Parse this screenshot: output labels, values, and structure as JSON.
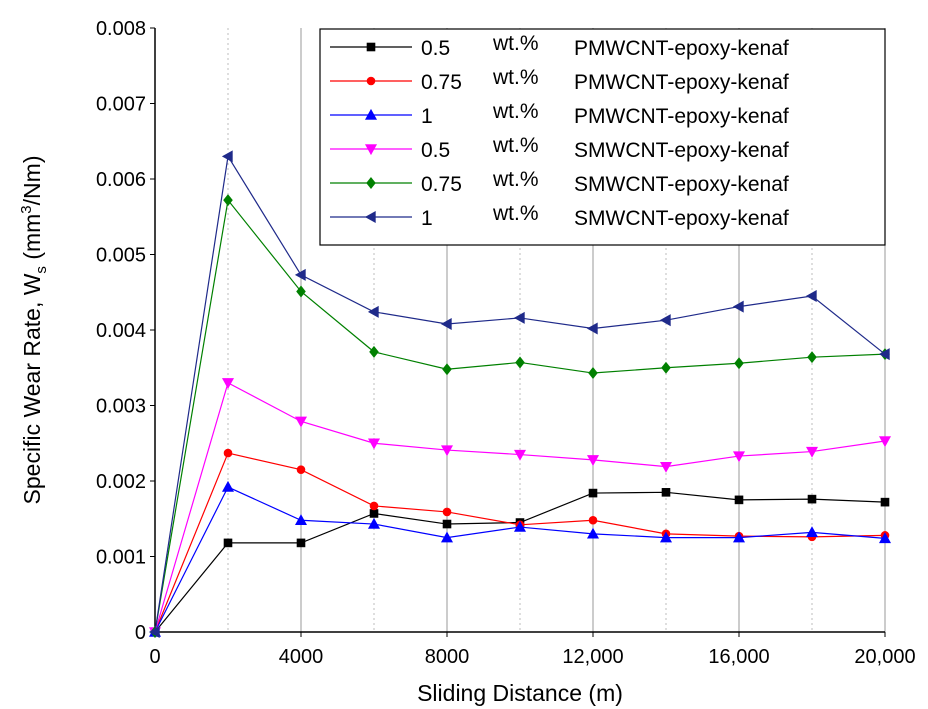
{
  "chart_data": {
    "type": "line",
    "title": "",
    "xlabel": "Sliding Distance (m)",
    "ylabel_main": "Specific Wear Rate, W",
    "ylabel_sub": "s",
    "ylabel_unit_open": " (mm",
    "ylabel_unit_sup": "3",
    "ylabel_unit_close": "/Nm)",
    "xlim": [
      0,
      20000
    ],
    "ylim": [
      0,
      0.008
    ],
    "x_ticks": [
      {
        "value": 0,
        "label": "0"
      },
      {
        "value": 4000,
        "label": "4000"
      },
      {
        "value": 8000,
        "label": "8000"
      },
      {
        "value": 12000,
        "label": "12,000"
      },
      {
        "value": 16000,
        "label": "16,000"
      },
      {
        "value": 20000,
        "label": "20,000"
      }
    ],
    "y_ticks": [
      {
        "value": 0,
        "label": "0"
      },
      {
        "value": 0.001,
        "label": "0.001"
      },
      {
        "value": 0.002,
        "label": "0.002"
      },
      {
        "value": 0.003,
        "label": "0.003"
      },
      {
        "value": 0.004,
        "label": "0.004"
      },
      {
        "value": 0.005,
        "label": "0.005"
      },
      {
        "value": 0.006,
        "label": "0.006"
      },
      {
        "value": 0.007,
        "label": "0.007"
      },
      {
        "value": 0.008,
        "label": "0.008"
      }
    ],
    "grid": "vertical",
    "legend_position": "top-right",
    "x": [
      0,
      2000,
      4000,
      6000,
      8000,
      10000,
      12000,
      14000,
      16000,
      18000,
      20000
    ],
    "series": [
      {
        "conc": "0.5",
        "unit": "wt.%",
        "material": "PMWCNT-epoxy-kenaf",
        "color": "#000000",
        "marker": "square",
        "values": [
          0,
          0.00118,
          0.00118,
          0.00157,
          0.00143,
          0.00145,
          0.00184,
          0.00185,
          0.00175,
          0.00176,
          0.00172
        ]
      },
      {
        "conc": "0.75",
        "unit": "wt.%",
        "material": "PMWCNT-epoxy-kenaf",
        "color": "#ff0000",
        "marker": "circle",
        "values": [
          0,
          0.00237,
          0.00215,
          0.00167,
          0.00159,
          0.00142,
          0.00148,
          0.0013,
          0.00127,
          0.00126,
          0.00128
        ]
      },
      {
        "conc": "1",
        "unit": "wt.%",
        "material": "PMWCNT-epoxy-kenaf",
        "color": "#0000ff",
        "marker": "triangle-up",
        "values": [
          0,
          0.00192,
          0.00148,
          0.00143,
          0.00125,
          0.00139,
          0.0013,
          0.00125,
          0.00125,
          0.00132,
          0.00124
        ]
      },
      {
        "conc": "0.5",
        "unit": "wt.%",
        "material": "SMWCNT-epoxy-kenaf",
        "color": "#ff00ff",
        "marker": "triangle-down",
        "values": [
          0,
          0.0033,
          0.00279,
          0.0025,
          0.00241,
          0.00235,
          0.00228,
          0.00219,
          0.00233,
          0.00239,
          0.00253
        ]
      },
      {
        "conc": "0.75",
        "unit": "wt.%",
        "material": "SMWCNT-epoxy-kenaf",
        "color": "#008000",
        "marker": "diamond",
        "values": [
          0,
          0.00572,
          0.00451,
          0.00371,
          0.00348,
          0.00357,
          0.00343,
          0.0035,
          0.00356,
          0.00364,
          0.00368
        ]
      },
      {
        "conc": "1",
        "unit": "wt.%",
        "material": "SMWCNT-epoxy-kenaf",
        "color": "#1f2a8a",
        "marker": "triangle-left",
        "values": [
          0,
          0.0063,
          0.00473,
          0.00424,
          0.00408,
          0.00416,
          0.00402,
          0.00413,
          0.00431,
          0.00445,
          0.00368
        ]
      }
    ]
  }
}
